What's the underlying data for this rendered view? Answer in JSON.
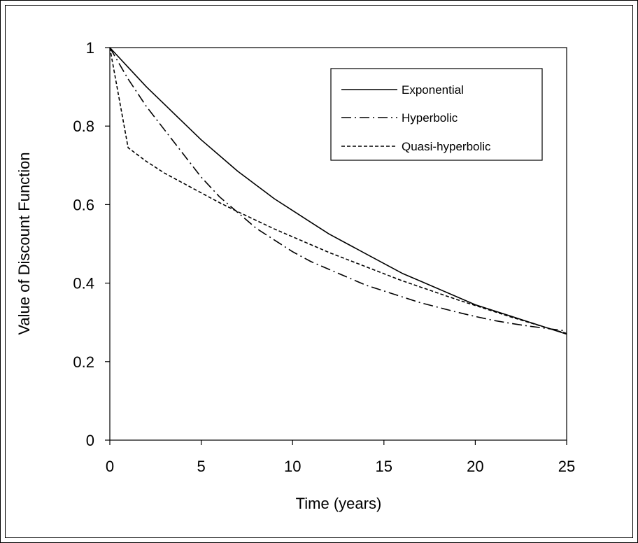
{
  "chart_data": {
    "type": "line",
    "title": "",
    "xlabel": "Time (years)",
    "ylabel": "Value of Discount Function",
    "xlim": [
      0,
      25
    ],
    "ylim": [
      0,
      1
    ],
    "xticks": [
      "0",
      "5",
      "10",
      "15",
      "20",
      "25"
    ],
    "yticks": [
      "0",
      "0.2",
      "0.4",
      "0.6",
      "0.8",
      "1"
    ],
    "legend_position": "top-right",
    "grid": false,
    "series": [
      {
        "name": "Exponential",
        "style": "solid",
        "x": [
          0,
          1,
          2,
          3,
          4,
          5,
          6,
          7,
          8,
          9,
          10,
          11,
          12,
          13,
          14,
          15,
          16,
          17,
          18,
          19,
          20,
          21,
          22,
          23,
          24,
          25
        ],
        "y": [
          1,
          0.95,
          0.9,
          0.855,
          0.81,
          0.765,
          0.725,
          0.685,
          0.65,
          0.615,
          0.585,
          0.555,
          0.525,
          0.5,
          0.475,
          0.45,
          0.425,
          0.405,
          0.385,
          0.365,
          0.345,
          0.33,
          0.315,
          0.3,
          0.285,
          0.27
        ]
      },
      {
        "name": "Hyperbolic",
        "style": "dashdot",
        "x": [
          0,
          1,
          2,
          3,
          4,
          5,
          6,
          7,
          8,
          9,
          10,
          11,
          12,
          13,
          14,
          15,
          16,
          17,
          18,
          19,
          20,
          21,
          22,
          23,
          24,
          25
        ],
        "y": [
          1,
          0.92,
          0.85,
          0.79,
          0.73,
          0.67,
          0.62,
          0.58,
          0.54,
          0.51,
          0.48,
          0.455,
          0.435,
          0.415,
          0.395,
          0.38,
          0.365,
          0.35,
          0.338,
          0.326,
          0.315,
          0.305,
          0.297,
          0.29,
          0.284,
          0.278
        ]
      },
      {
        "name": "Quasi-hyperbolic",
        "style": "dashed",
        "x": [
          0,
          1,
          2,
          3,
          4,
          5,
          6,
          7,
          8,
          9,
          10,
          11,
          12,
          13,
          14,
          15,
          16,
          17,
          18,
          19,
          20,
          21,
          22,
          23,
          24,
          25
        ],
        "y": [
          1,
          0.745,
          0.71,
          0.68,
          0.655,
          0.63,
          0.605,
          0.582,
          0.56,
          0.538,
          0.518,
          0.498,
          0.478,
          0.46,
          0.442,
          0.424,
          0.406,
          0.39,
          0.374,
          0.358,
          0.343,
          0.328,
          0.313,
          0.299,
          0.285,
          0.272
        ]
      }
    ]
  }
}
